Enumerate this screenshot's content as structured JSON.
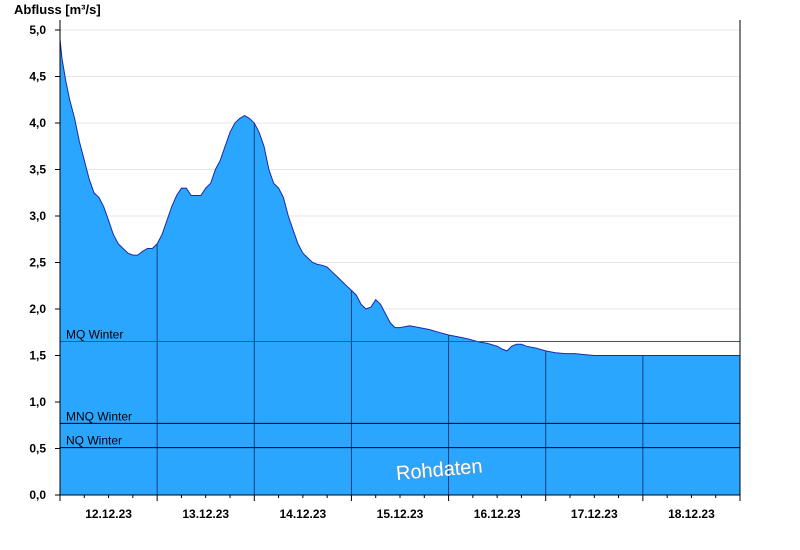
{
  "chart_data": {
    "type": "area",
    "ylabel": "Abfluss [m³/s]",
    "ylim": [
      0,
      5
    ],
    "yticks": [
      "0,0",
      "0,5",
      "1,0",
      "1,5",
      "2,0",
      "2,5",
      "3,0",
      "3,5",
      "4,0",
      "4,5",
      "5,0"
    ],
    "ytick_values": [
      0,
      0.5,
      1,
      1.5,
      2,
      2.5,
      3,
      3.5,
      4,
      4.5,
      5
    ],
    "xlim_days": [
      11.5,
      18.5
    ],
    "xticks": [
      "12.12.23",
      "13.12.23",
      "14.12.23",
      "15.12.23",
      "16.12.23",
      "17.12.23",
      "18.12.23"
    ],
    "xtick_days": [
      12,
      13,
      14,
      15,
      16,
      17,
      18
    ],
    "day_separators": [
      12.5,
      13.5,
      14.5,
      15.5,
      16.5,
      17.5
    ],
    "grid": true,
    "fill_color": "#2aa6ff",
    "line_color": "#1b2aa8",
    "series": [
      {
        "x": [
          11.5,
          11.52,
          11.56,
          11.6,
          11.65,
          11.7,
          11.75,
          11.8,
          11.85,
          11.9,
          11.95,
          12.0,
          12.05,
          12.1,
          12.15,
          12.2,
          12.25,
          12.3,
          12.35,
          12.4,
          12.45,
          12.5,
          12.55,
          12.6,
          12.65,
          12.7,
          12.75,
          12.8,
          12.85,
          12.9,
          12.95,
          13.0,
          13.05,
          13.1,
          13.15,
          13.2,
          13.25,
          13.3,
          13.35,
          13.4,
          13.45,
          13.5,
          13.55,
          13.6,
          13.65,
          13.7,
          13.75,
          13.8,
          13.85,
          13.9,
          13.95,
          14.0,
          14.05,
          14.1,
          14.15,
          14.2,
          14.25,
          14.3,
          14.35,
          14.4,
          14.45,
          14.5,
          14.55,
          14.6,
          14.65,
          14.7,
          14.75,
          14.8,
          14.85,
          14.9,
          14.95,
          15.0,
          15.1,
          15.2,
          15.3,
          15.4,
          15.5,
          15.6,
          15.7,
          15.8,
          15.9,
          16.0,
          16.05,
          16.1,
          16.15,
          16.2,
          16.25,
          16.3,
          16.4,
          16.5,
          16.6,
          16.7,
          16.8,
          16.9,
          17.0,
          17.1,
          17.2,
          17.3,
          17.4,
          17.5,
          17.6,
          17.7,
          17.8,
          17.9,
          18.0,
          18.1,
          18.2,
          18.3,
          18.4,
          18.5
        ],
        "values": [
          4.9,
          4.7,
          4.45,
          4.25,
          4.05,
          3.8,
          3.6,
          3.4,
          3.25,
          3.2,
          3.1,
          2.95,
          2.8,
          2.7,
          2.65,
          2.6,
          2.58,
          2.58,
          2.62,
          2.65,
          2.65,
          2.7,
          2.8,
          2.95,
          3.1,
          3.22,
          3.3,
          3.3,
          3.22,
          3.22,
          3.22,
          3.3,
          3.35,
          3.5,
          3.6,
          3.75,
          3.9,
          4.0,
          4.05,
          4.08,
          4.05,
          4.0,
          3.9,
          3.75,
          3.5,
          3.35,
          3.3,
          3.2,
          3.0,
          2.85,
          2.7,
          2.6,
          2.55,
          2.5,
          2.48,
          2.47,
          2.45,
          2.4,
          2.35,
          2.3,
          2.25,
          2.2,
          2.15,
          2.05,
          2.0,
          2.02,
          2.1,
          2.05,
          1.95,
          1.85,
          1.8,
          1.8,
          1.82,
          1.8,
          1.78,
          1.75,
          1.72,
          1.7,
          1.68,
          1.65,
          1.63,
          1.6,
          1.57,
          1.55,
          1.6,
          1.62,
          1.62,
          1.6,
          1.58,
          1.55,
          1.53,
          1.52,
          1.52,
          1.51,
          1.5,
          1.5,
          1.5,
          1.5,
          1.5,
          1.5,
          1.5,
          1.5,
          1.5,
          1.5,
          1.5,
          1.5,
          1.5,
          1.5,
          1.5,
          1.5
        ]
      }
    ],
    "reference_lines": [
      {
        "label": "MQ Winter",
        "value": 1.65,
        "color": "#1a7a1a"
      },
      {
        "label": "MNQ Winter",
        "value": 0.77,
        "color": "#000000"
      },
      {
        "label": "NQ Winter",
        "value": 0.51,
        "color": "#000000"
      }
    ],
    "watermark": "Rohdaten"
  }
}
